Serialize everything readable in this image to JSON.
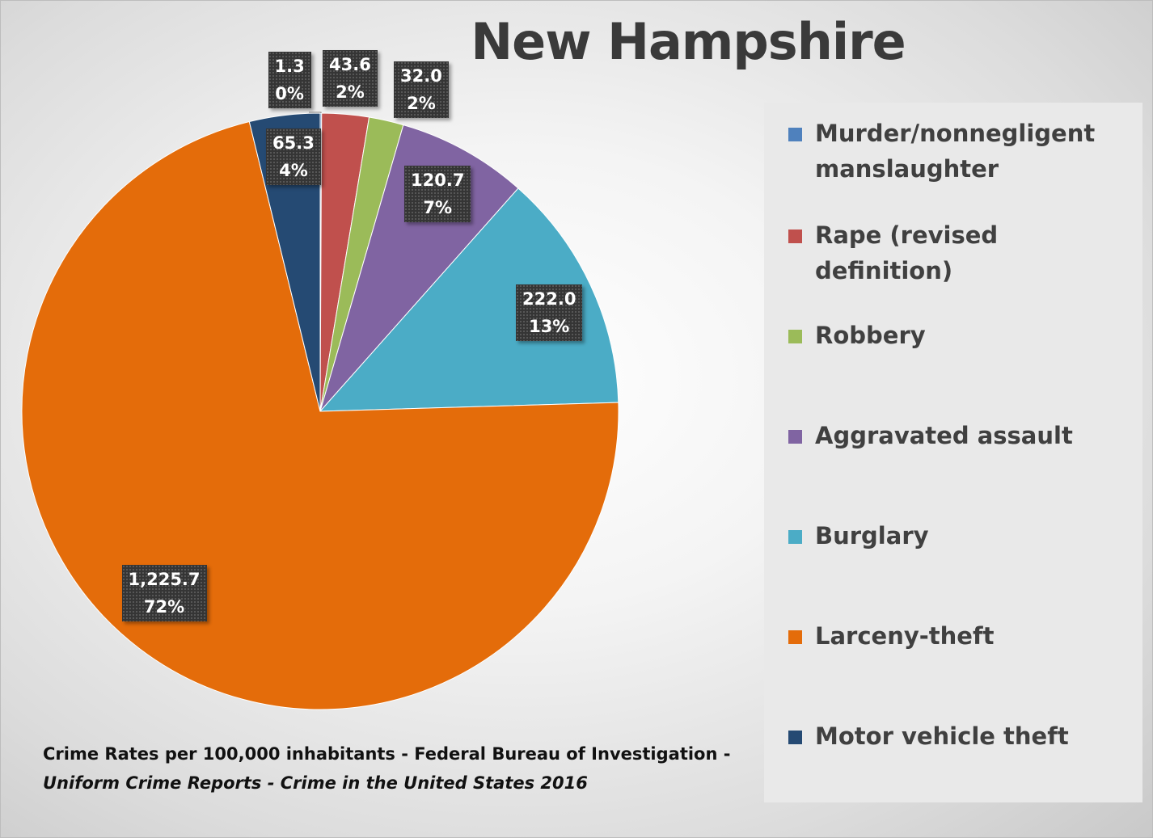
{
  "chart_data": {
    "type": "pie",
    "title": "New Hampshire",
    "categories": [
      "Murder/nonnegligent manslaughter",
      "Rape (revised definition)",
      "Robbery",
      "Aggravated assault",
      "Burglary",
      "Larceny-theft",
      "Motor vehicle theft"
    ],
    "values": [
      1.3,
      43.6,
      32.0,
      120.7,
      222.0,
      1225.7,
      65.3
    ],
    "value_labels": [
      "1.3",
      "43.6",
      "32.0",
      "120.7",
      "222.0",
      "1,225.7",
      "65.3"
    ],
    "percent_labels": [
      "0%",
      "2%",
      "2%",
      "7%",
      "13%",
      "72%",
      "4%"
    ],
    "colors": [
      "#4f81bd",
      "#c0504d",
      "#9bbb59",
      "#8064a2",
      "#4bacc6",
      "#e46c0a",
      "#254a73"
    ],
    "legend_position": "right",
    "start_angle": "top, clockwise"
  },
  "source": {
    "text_plain": "Crime Rates per 100,000 inhabitants - Federal Bureau of Investigation - ",
    "text_italic": "Uniform Crime Reports - Crime in the United States 2016"
  },
  "icons": {
    "legend_swatch": "square-color-swatch"
  }
}
